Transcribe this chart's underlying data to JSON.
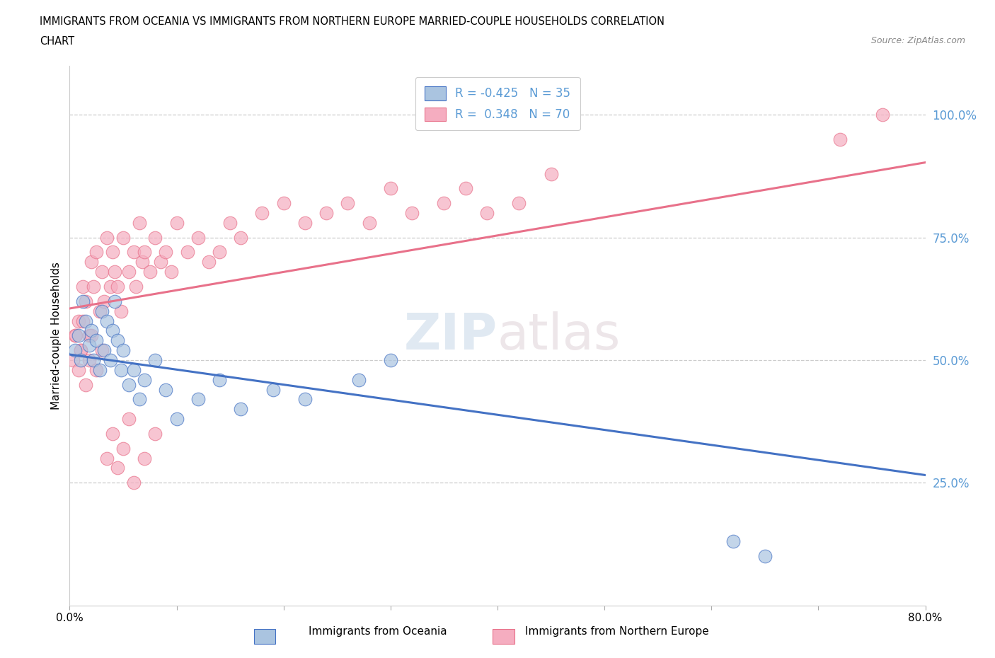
{
  "title_line1": "IMMIGRANTS FROM OCEANIA VS IMMIGRANTS FROM NORTHERN EUROPE MARRIED-COUPLE HOUSEHOLDS CORRELATION",
  "title_line2": "CHART",
  "source_text": "Source: ZipAtlas.com",
  "ylabel": "Married-couple Households",
  "xmin": 0.0,
  "xmax": 0.8,
  "ymin": 0.0,
  "ymax": 1.1,
  "r_oceania": -0.425,
  "n_oceania": 35,
  "r_northern_europe": 0.348,
  "n_northern_europe": 70,
  "color_oceania": "#aac4e0",
  "color_northern_europe": "#f5adc0",
  "line_color_oceania": "#4472c4",
  "line_color_northern_europe": "#e8718a",
  "tick_color": "#5b9bd5",
  "watermark": "ZIPatlas",
  "oceania_x": [
    0.005,
    0.008,
    0.01,
    0.012,
    0.015,
    0.018,
    0.02,
    0.022,
    0.025,
    0.028,
    0.03,
    0.032,
    0.035,
    0.038,
    0.04,
    0.042,
    0.045,
    0.048,
    0.05,
    0.055,
    0.06,
    0.065,
    0.07,
    0.08,
    0.09,
    0.1,
    0.12,
    0.14,
    0.16,
    0.19,
    0.22,
    0.27,
    0.3,
    0.62,
    0.65
  ],
  "oceania_y": [
    0.52,
    0.55,
    0.5,
    0.62,
    0.58,
    0.53,
    0.56,
    0.5,
    0.54,
    0.48,
    0.6,
    0.52,
    0.58,
    0.5,
    0.56,
    0.62,
    0.54,
    0.48,
    0.52,
    0.45,
    0.48,
    0.42,
    0.46,
    0.5,
    0.44,
    0.38,
    0.42,
    0.46,
    0.4,
    0.44,
    0.42,
    0.46,
    0.5,
    0.13,
    0.1
  ],
  "northern_europe_x": [
    0.005,
    0.008,
    0.01,
    0.012,
    0.015,
    0.018,
    0.02,
    0.022,
    0.025,
    0.028,
    0.03,
    0.032,
    0.035,
    0.038,
    0.04,
    0.042,
    0.045,
    0.048,
    0.05,
    0.055,
    0.06,
    0.062,
    0.065,
    0.068,
    0.07,
    0.075,
    0.08,
    0.085,
    0.09,
    0.095,
    0.1,
    0.11,
    0.12,
    0.13,
    0.14,
    0.15,
    0.16,
    0.18,
    0.2,
    0.22,
    0.24,
    0.26,
    0.28,
    0.3,
    0.32,
    0.35,
    0.37,
    0.39,
    0.42,
    0.45,
    0.003,
    0.006,
    0.008,
    0.01,
    0.012,
    0.015,
    0.018,
    0.02,
    0.025,
    0.03,
    0.035,
    0.04,
    0.045,
    0.05,
    0.055,
    0.06,
    0.07,
    0.08,
    0.72,
    0.76
  ],
  "northern_europe_y": [
    0.55,
    0.58,
    0.52,
    0.65,
    0.62,
    0.55,
    0.7,
    0.65,
    0.72,
    0.6,
    0.68,
    0.62,
    0.75,
    0.65,
    0.72,
    0.68,
    0.65,
    0.6,
    0.75,
    0.68,
    0.72,
    0.65,
    0.78,
    0.7,
    0.72,
    0.68,
    0.75,
    0.7,
    0.72,
    0.68,
    0.78,
    0.72,
    0.75,
    0.7,
    0.72,
    0.78,
    0.75,
    0.8,
    0.82,
    0.78,
    0.8,
    0.82,
    0.78,
    0.85,
    0.8,
    0.82,
    0.85,
    0.8,
    0.82,
    0.88,
    0.5,
    0.55,
    0.48,
    0.52,
    0.58,
    0.45,
    0.5,
    0.55,
    0.48,
    0.52,
    0.3,
    0.35,
    0.28,
    0.32,
    0.38,
    0.25,
    0.3,
    0.35,
    0.95,
    1.0
  ]
}
